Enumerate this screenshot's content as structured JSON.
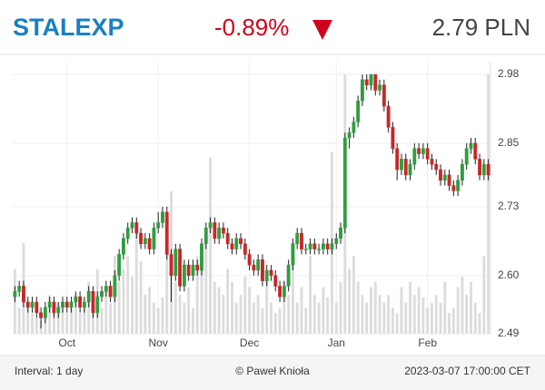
{
  "header": {
    "title": "STALEXP",
    "change": "-0.89%",
    "price": "2.79 PLN"
  },
  "chart_data": {
    "type": "candlestick",
    "categories": [
      null,
      null,
      null,
      null,
      null,
      null,
      null,
      null,
      null,
      null,
      null,
      null,
      "Oct",
      null,
      null,
      null,
      null,
      null,
      null,
      null,
      null,
      null,
      null,
      null,
      null,
      null,
      null,
      null,
      null,
      null,
      null,
      null,
      null,
      "Nov",
      null,
      null,
      null,
      null,
      null,
      null,
      null,
      null,
      null,
      null,
      null,
      null,
      null,
      null,
      null,
      null,
      null,
      null,
      null,
      null,
      "Dec",
      null,
      null,
      null,
      null,
      null,
      null,
      null,
      null,
      null,
      null,
      null,
      null,
      null,
      null,
      null,
      null,
      null,
      null,
      null,
      "Jan",
      null,
      null,
      null,
      null,
      null,
      null,
      null,
      null,
      null,
      null,
      null,
      null,
      null,
      null,
      null,
      null,
      null,
      null,
      null,
      null,
      "Feb",
      null,
      null,
      null,
      null,
      null,
      null,
      null,
      null,
      null,
      null,
      null,
      null,
      null,
      null
    ],
    "candles": [
      [
        2.56,
        2.58,
        2.55,
        2.57
      ],
      [
        2.57,
        2.59,
        2.56,
        2.58
      ],
      [
        2.58,
        2.59,
        2.54,
        2.55
      ],
      [
        2.55,
        2.56,
        2.53,
        2.54
      ],
      [
        2.54,
        2.56,
        2.53,
        2.55
      ],
      [
        2.55,
        2.56,
        2.52,
        2.53
      ],
      [
        2.53,
        2.54,
        2.5,
        2.52
      ],
      [
        2.52,
        2.55,
        2.51,
        2.54
      ],
      [
        2.54,
        2.56,
        2.53,
        2.55
      ],
      [
        2.55,
        2.56,
        2.52,
        2.53
      ],
      [
        2.53,
        2.55,
        2.52,
        2.54
      ],
      [
        2.54,
        2.56,
        2.53,
        2.55
      ],
      [
        2.55,
        2.56,
        2.53,
        2.54
      ],
      [
        2.54,
        2.56,
        2.53,
        2.55
      ],
      [
        2.55,
        2.57,
        2.54,
        2.56
      ],
      [
        2.56,
        2.57,
        2.53,
        2.54
      ],
      [
        2.54,
        2.56,
        2.53,
        2.55
      ],
      [
        2.55,
        2.58,
        2.54,
        2.57
      ],
      [
        2.57,
        2.58,
        2.52,
        2.53
      ],
      [
        2.53,
        2.57,
        2.52,
        2.56
      ],
      [
        2.56,
        2.58,
        2.55,
        2.57
      ],
      [
        2.57,
        2.59,
        2.56,
        2.58
      ],
      [
        2.58,
        2.59,
        2.55,
        2.56
      ],
      [
        2.56,
        2.61,
        2.55,
        2.6
      ],
      [
        2.6,
        2.65,
        2.59,
        2.64
      ],
      [
        2.64,
        2.68,
        2.63,
        2.67
      ],
      [
        2.67,
        2.7,
        2.66,
        2.69
      ],
      [
        2.69,
        2.71,
        2.68,
        2.7
      ],
      [
        2.7,
        2.71,
        2.67,
        2.68
      ],
      [
        2.68,
        2.69,
        2.65,
        2.66
      ],
      [
        2.66,
        2.68,
        2.65,
        2.67
      ],
      [
        2.67,
        2.68,
        2.64,
        2.65
      ],
      [
        2.65,
        2.7,
        2.64,
        2.69
      ],
      [
        2.69,
        2.72,
        2.68,
        2.7
      ],
      [
        2.7,
        2.73,
        2.69,
        2.72
      ],
      [
        2.72,
        2.73,
        2.63,
        2.64
      ],
      [
        2.64,
        2.65,
        2.55,
        2.6
      ],
      [
        2.6,
        2.66,
        2.59,
        2.65
      ],
      [
        2.65,
        2.66,
        2.57,
        2.58
      ],
      [
        2.58,
        2.63,
        2.57,
        2.62
      ],
      [
        2.62,
        2.63,
        2.59,
        2.6
      ],
      [
        2.6,
        2.63,
        2.59,
        2.62
      ],
      [
        2.62,
        2.63,
        2.6,
        2.61
      ],
      [
        2.61,
        2.67,
        2.6,
        2.66
      ],
      [
        2.66,
        2.7,
        2.65,
        2.69
      ],
      [
        2.69,
        2.71,
        2.68,
        2.7
      ],
      [
        2.7,
        2.71,
        2.66,
        2.67
      ],
      [
        2.67,
        2.7,
        2.66,
        2.69
      ],
      [
        2.69,
        2.7,
        2.67,
        2.68
      ],
      [
        2.68,
        2.69,
        2.65,
        2.66
      ],
      [
        2.66,
        2.67,
        2.64,
        2.65
      ],
      [
        2.65,
        2.68,
        2.64,
        2.67
      ],
      [
        2.67,
        2.68,
        2.65,
        2.66
      ],
      [
        2.66,
        2.67,
        2.63,
        2.64
      ],
      [
        2.64,
        2.65,
        2.61,
        2.62
      ],
      [
        2.62,
        2.63,
        2.6,
        2.61
      ],
      [
        2.61,
        2.64,
        2.6,
        2.63
      ],
      [
        2.63,
        2.64,
        2.58,
        2.59
      ],
      [
        2.59,
        2.62,
        2.58,
        2.61
      ],
      [
        2.61,
        2.62,
        2.59,
        2.6
      ],
      [
        2.6,
        2.61,
        2.57,
        2.58
      ],
      [
        2.58,
        2.59,
        2.55,
        2.56
      ],
      [
        2.56,
        2.59,
        2.55,
        2.58
      ],
      [
        2.58,
        2.63,
        2.57,
        2.62
      ],
      [
        2.62,
        2.67,
        2.61,
        2.66
      ],
      [
        2.66,
        2.69,
        2.65,
        2.68
      ],
      [
        2.68,
        2.69,
        2.64,
        2.65
      ],
      [
        2.65,
        2.66,
        2.64,
        2.65
      ],
      [
        2.65,
        2.67,
        2.64,
        2.66
      ],
      [
        2.66,
        2.67,
        2.64,
        2.65
      ],
      [
        2.65,
        2.66,
        2.64,
        2.65
      ],
      [
        2.65,
        2.67,
        2.64,
        2.66
      ],
      [
        2.66,
        2.67,
        2.64,
        2.65
      ],
      [
        2.65,
        2.67,
        2.64,
        2.66
      ],
      [
        2.66,
        2.68,
        2.65,
        2.67
      ],
      [
        2.67,
        2.7,
        2.66,
        2.69
      ],
      [
        2.69,
        2.87,
        2.68,
        2.86
      ],
      [
        2.86,
        2.88,
        2.84,
        2.87
      ],
      [
        2.87,
        2.9,
        2.86,
        2.89
      ],
      [
        2.89,
        2.94,
        2.88,
        2.93
      ],
      [
        2.93,
        2.98,
        2.92,
        2.97
      ],
      [
        2.97,
        2.98,
        2.95,
        2.96
      ],
      [
        2.96,
        2.98,
        2.95,
        2.98
      ],
      [
        2.98,
        2.98,
        2.94,
        2.95
      ],
      [
        2.95,
        2.97,
        2.94,
        2.96
      ],
      [
        2.96,
        2.97,
        2.91,
        2.92
      ],
      [
        2.92,
        2.93,
        2.87,
        2.88
      ],
      [
        2.88,
        2.89,
        2.83,
        2.84
      ],
      [
        2.84,
        2.85,
        2.78,
        2.8
      ],
      [
        2.8,
        2.83,
        2.79,
        2.82
      ],
      [
        2.82,
        2.83,
        2.78,
        2.79
      ],
      [
        2.79,
        2.82,
        2.78,
        2.81
      ],
      [
        2.81,
        2.85,
        2.8,
        2.84
      ],
      [
        2.84,
        2.85,
        2.82,
        2.83
      ],
      [
        2.83,
        2.85,
        2.82,
        2.84
      ],
      [
        2.84,
        2.85,
        2.81,
        2.82
      ],
      [
        2.82,
        2.83,
        2.8,
        2.81
      ],
      [
        2.81,
        2.82,
        2.79,
        2.8
      ],
      [
        2.8,
        2.81,
        2.77,
        2.78
      ],
      [
        2.78,
        2.8,
        2.77,
        2.79
      ],
      [
        2.79,
        2.8,
        2.76,
        2.77
      ],
      [
        2.77,
        2.78,
        2.75,
        2.76
      ],
      [
        2.76,
        2.79,
        2.75,
        2.78
      ],
      [
        2.78,
        2.82,
        2.77,
        2.81
      ],
      [
        2.81,
        2.85,
        2.8,
        2.84
      ],
      [
        2.84,
        2.86,
        2.83,
        2.85
      ],
      [
        2.85,
        2.86,
        2.81,
        2.82
      ],
      [
        2.82,
        2.83,
        2.78,
        2.79
      ],
      [
        2.79,
        2.82,
        2.78,
        2.81
      ],
      [
        2.81,
        2.82,
        2.78,
        2.79
      ]
    ],
    "volume": [
      25,
      10,
      35,
      12,
      8,
      6,
      5,
      10,
      15,
      8,
      12,
      10,
      8,
      10,
      15,
      8,
      12,
      20,
      15,
      25,
      10,
      18,
      12,
      30,
      20,
      25,
      30,
      22,
      40,
      28,
      15,
      18,
      12,
      10,
      14,
      35,
      55,
      20,
      15,
      12,
      18,
      10,
      30,
      30,
      40,
      68,
      20,
      18,
      15,
      25,
      20,
      12,
      15,
      22,
      18,
      12,
      15,
      10,
      22,
      12,
      8,
      10,
      20,
      15,
      35,
      12,
      18,
      10,
      30,
      15,
      12,
      18,
      14,
      70,
      12,
      20,
      100,
      25,
      30,
      20,
      15,
      12,
      18,
      20,
      15,
      12,
      15,
      10,
      8,
      18,
      12,
      20,
      15,
      18,
      14,
      10,
      12,
      15,
      12,
      20,
      8,
      10,
      18,
      22,
      15,
      20,
      12,
      8,
      30,
      100
    ],
    "up_color": "#2e9e3e",
    "down_color": "#c62828",
    "wick_color": "#222222",
    "volume_color": "#dcdcdc",
    "ylim": [
      2.49,
      2.98
    ],
    "yticks": [
      2.49,
      {
        "value": 2.6,
        "label": "2.60"
      },
      2.73,
      2.85,
      2.98
    ],
    "grid": true
  },
  "footer": {
    "interval": "Interval: 1 day",
    "author": "© Paweł Knioła",
    "timestamp": "2023-03-07 17:00:00 CET"
  }
}
